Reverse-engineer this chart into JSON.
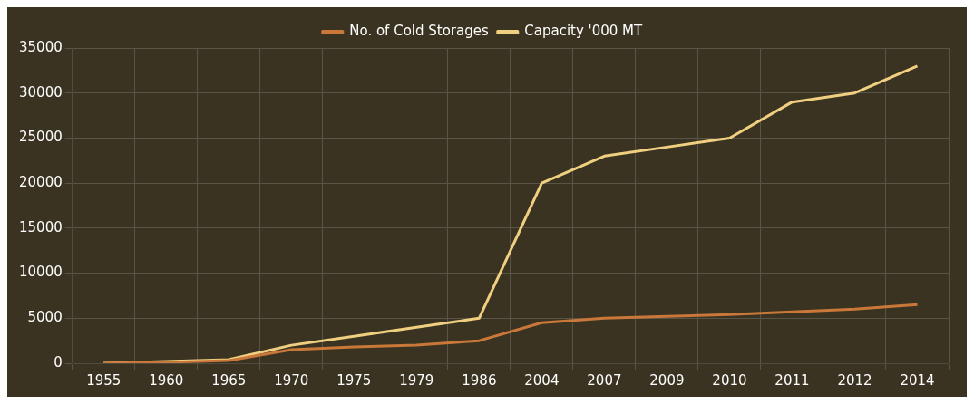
{
  "chart_data": {
    "type": "line",
    "categories": [
      "1955",
      "1960",
      "1965",
      "1970",
      "1975",
      "1979",
      "1986",
      "2004",
      "2007",
      "2009",
      "2010",
      "2011",
      "2012",
      "2014"
    ],
    "series": [
      {
        "name": "No. of Cold Storages",
        "color": "#c9783a",
        "values": [
          0,
          100,
          300,
          1500,
          1800,
          2000,
          2500,
          4500,
          5000,
          5200,
          5400,
          5700,
          6000,
          6500
        ]
      },
      {
        "name": "Capacity '000 MT",
        "color": "#f0d080",
        "values": [
          0,
          200,
          400,
          2000,
          3000,
          4000,
          5000,
          20000,
          23000,
          24000,
          25000,
          29000,
          30000,
          33000
        ]
      }
    ],
    "ylim": [
      0,
      35000
    ],
    "yticks": [
      0,
      5000,
      10000,
      15000,
      20000,
      25000,
      30000,
      35000
    ],
    "grid": true,
    "legend": "top",
    "marker": "none"
  }
}
